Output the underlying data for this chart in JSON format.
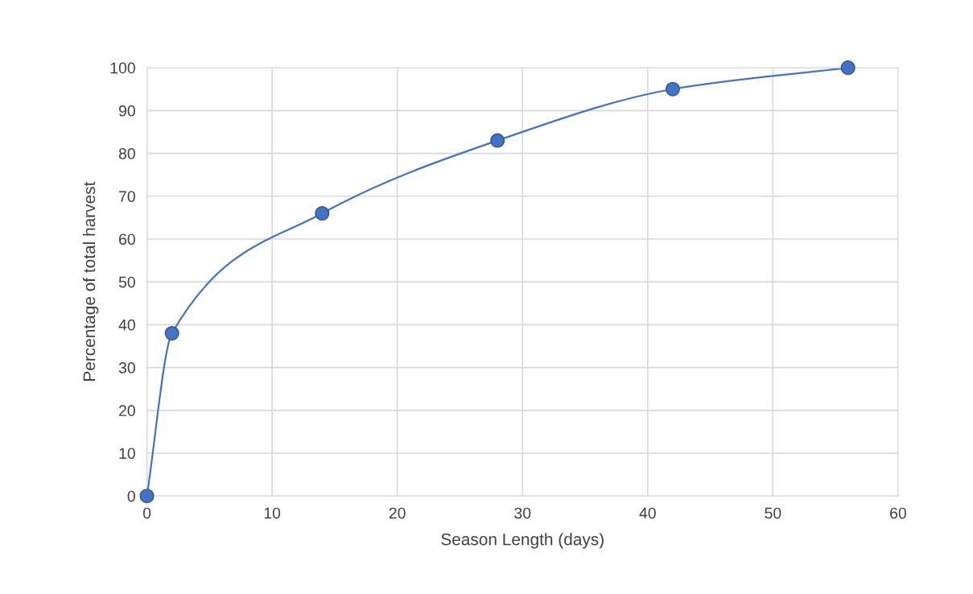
{
  "chart_data": {
    "type": "line",
    "xlabel": "Season Length (days)",
    "ylabel": "Percentage of total harvest",
    "x": [
      0,
      2,
      14,
      28,
      42,
      56
    ],
    "series": [
      {
        "color": "#4472c4",
        "values": [
          0,
          38,
          66,
          83,
          95,
          100
        ]
      }
    ],
    "xlim": [
      0,
      60
    ],
    "xticks": [
      0,
      10,
      20,
      30,
      40,
      50,
      60
    ],
    "ylim": [
      0,
      100
    ],
    "yticks": [
      0,
      10,
      20,
      30,
      40,
      50,
      60,
      70,
      80,
      90,
      100
    ],
    "grid": true,
    "marker": "circle",
    "line_style": "solid"
  }
}
